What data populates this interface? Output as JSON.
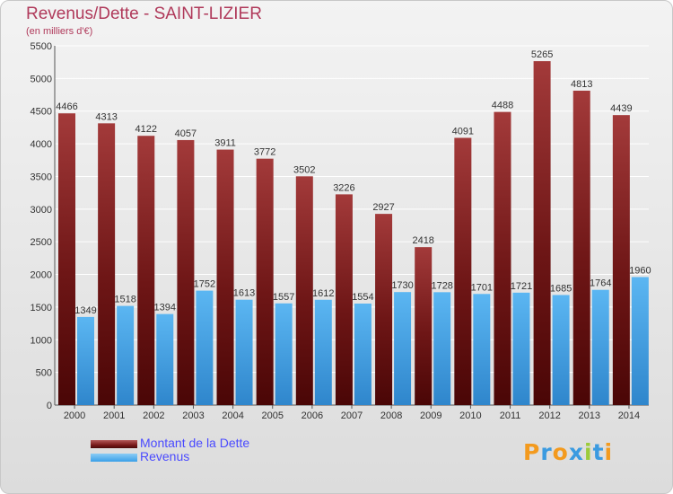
{
  "header": {
    "title": "Revenus/Dette - SAINT-LIZIER",
    "subtitle": "(en milliers d'€)"
  },
  "colors": {
    "debt": "#7a1a1a",
    "revenue": "#3aa0e8",
    "title": "#b03a5b",
    "legend_text": "#4a4aff"
  },
  "chart_data": {
    "type": "bar",
    "title": "Revenus/Dette - SAINT-LIZIER",
    "ylabel": "(en milliers d'€)",
    "ylim": [
      0,
      5500
    ],
    "yticks": [
      0,
      500,
      1000,
      1500,
      2000,
      2500,
      3000,
      3500,
      4000,
      4500,
      5000,
      5500
    ],
    "grid": true,
    "legend": "bottom-left",
    "categories": [
      "2000",
      "2001",
      "2002",
      "2003",
      "2004",
      "2005",
      "2006",
      "2007",
      "2008",
      "2009",
      "2010",
      "2011",
      "2012",
      "2013",
      "2014"
    ],
    "series": [
      {
        "name": "Montant de la Dette",
        "color": "#7a1a1a",
        "values": [
          4466,
          4313,
          4122,
          4057,
          3911,
          3772,
          3502,
          3226,
          2927,
          2418,
          4091,
          4488,
          5265,
          4813,
          4439
        ]
      },
      {
        "name": "Revenus",
        "color": "#3aa0e8",
        "values": [
          1349,
          1518,
          1394,
          1752,
          1613,
          1557,
          1612,
          1554,
          1730,
          1728,
          1701,
          1721,
          1685,
          1764,
          1960
        ]
      }
    ]
  },
  "legend": {
    "items": [
      {
        "label": "Montant de la Dette",
        "color": "#7a1a1a"
      },
      {
        "label": "Revenus",
        "color": "#3aa0e8"
      }
    ]
  },
  "logo": {
    "letters": [
      "P",
      "r",
      "o",
      "x",
      "i",
      "t",
      "i"
    ],
    "colors": [
      "#f39a1e",
      "#3b9be0",
      "#f39a1e",
      "#3b9be0",
      "#9ccb3a",
      "#3b9be0",
      "#f39a1e"
    ]
  }
}
